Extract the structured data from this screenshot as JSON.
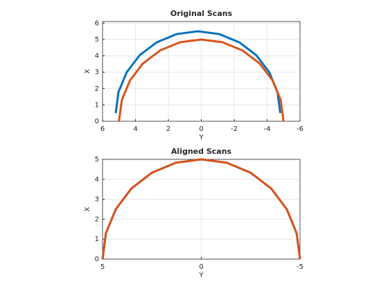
{
  "chart_data": [
    {
      "type": "line",
      "title": "Original Scans",
      "xlabel": "Y",
      "ylabel": "X",
      "xlim": [
        -6,
        6
      ],
      "xdir": "reverse",
      "xticks": [
        6,
        4,
        2,
        0,
        -2,
        -4,
        -6
      ],
      "ylim": [
        0,
        6.1
      ],
      "yticks": [
        0,
        1,
        2,
        3,
        4,
        5,
        6
      ],
      "grid": true,
      "series": [
        {
          "color": "#0072bd",
          "x": [
            5.2,
            5.03,
            4.53,
            3.74,
            2.7,
            1.49,
            0.2,
            -1.09,
            -2.3,
            -3.34,
            -4.13,
            -4.63,
            -4.8
          ],
          "values": [
            0.5,
            1.79,
            3.0,
            4.04,
            4.83,
            5.33,
            5.5,
            5.33,
            4.83,
            4.04,
            3.0,
            1.79,
            0.5
          ]
        },
        {
          "color": "#d95319",
          "x": [
            5,
            4.83,
            4.33,
            3.54,
            2.5,
            1.29,
            0,
            -1.29,
            -2.5,
            -3.54,
            -4.33,
            -4.83,
            -5
          ],
          "values": [
            0,
            1.29,
            2.5,
            3.54,
            4.33,
            4.83,
            5,
            4.83,
            4.33,
            3.54,
            2.5,
            1.29,
            0
          ]
        }
      ]
    },
    {
      "type": "line",
      "title": "Aligned Scans",
      "xlabel": "Y",
      "ylabel": "X",
      "xlim": [
        -5,
        5
      ],
      "xdir": "reverse",
      "xticks": [
        5,
        0,
        -5
      ],
      "ylim": [
        0,
        5
      ],
      "yticks": [
        0,
        1,
        2,
        3,
        4,
        5
      ],
      "grid": true,
      "series": [
        {
          "color": "#0072bd",
          "x": [
            5,
            4.83,
            4.33,
            3.54,
            2.5,
            1.29,
            0,
            -1.29,
            -2.5,
            -3.54,
            -4.33,
            -4.83,
            -5
          ],
          "values": [
            0,
            1.29,
            2.5,
            3.54,
            4.33,
            4.83,
            5,
            4.83,
            4.33,
            3.54,
            2.5,
            1.29,
            0
          ]
        },
        {
          "color": "#d95319",
          "x": [
            5,
            4.83,
            4.33,
            3.54,
            2.5,
            1.29,
            0,
            -1.29,
            -2.5,
            -3.54,
            -4.33,
            -4.83,
            -5
          ],
          "values": [
            0,
            1.29,
            2.5,
            3.54,
            4.33,
            4.83,
            5,
            4.83,
            4.33,
            3.54,
            2.5,
            1.29,
            0
          ]
        }
      ]
    }
  ]
}
